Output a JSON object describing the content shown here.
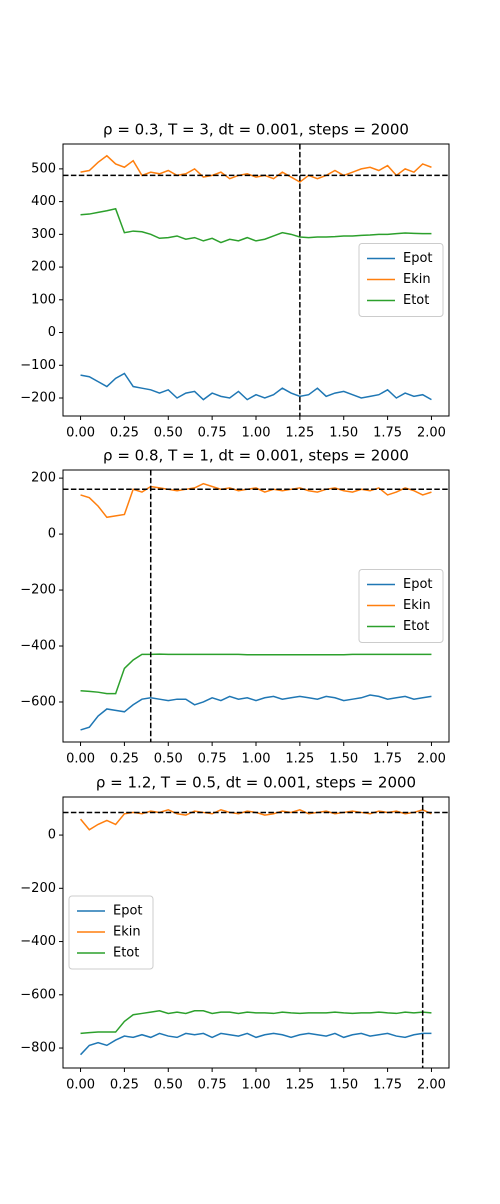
{
  "chart_data": [
    {
      "type": "line",
      "title": "ρ = 0.3, T = 3, dt = 0.001, steps = 2000",
      "x": [
        0,
        0.05,
        0.1,
        0.15,
        0.2,
        0.25,
        0.3,
        0.35,
        0.4,
        0.45,
        0.5,
        0.55,
        0.6,
        0.65,
        0.7,
        0.75,
        0.8,
        0.85,
        0.9,
        0.95,
        1,
        1.05,
        1.1,
        1.15,
        1.2,
        1.25,
        1.3,
        1.35,
        1.4,
        1.45,
        1.5,
        1.55,
        1.6,
        1.65,
        1.7,
        1.75,
        1.8,
        1.85,
        1.9,
        1.95,
        2
      ],
      "series": [
        {
          "name": "Epot",
          "color": "#1f77b4",
          "values": [
            -130,
            -135,
            -150,
            -165,
            -140,
            -125,
            -165,
            -170,
            -175,
            -185,
            -175,
            -200,
            -185,
            -180,
            -205,
            -185,
            -195,
            -200,
            -180,
            -205,
            -190,
            -200,
            -190,
            -170,
            -185,
            -195,
            -190,
            -170,
            -195,
            -185,
            -180,
            -190,
            -200,
            -195,
            -190,
            -175,
            -200,
            -185,
            -195,
            -190,
            -205
          ]
        },
        {
          "name": "Ekin",
          "color": "#ff7f0e",
          "values": [
            490,
            495,
            520,
            540,
            515,
            505,
            525,
            480,
            490,
            485,
            495,
            480,
            485,
            500,
            475,
            480,
            490,
            470,
            480,
            485,
            475,
            480,
            470,
            490,
            475,
            460,
            480,
            470,
            480,
            495,
            480,
            490,
            500,
            505,
            495,
            510,
            480,
            500,
            490,
            515,
            505
          ]
        },
        {
          "name": "Etot",
          "color": "#2ca02c",
          "values": [
            360,
            362,
            367,
            372,
            378,
            305,
            310,
            308,
            300,
            288,
            290,
            295,
            285,
            290,
            280,
            288,
            275,
            285,
            280,
            290,
            280,
            285,
            295,
            305,
            300,
            292,
            290,
            292,
            292,
            293,
            295,
            295,
            297,
            298,
            300,
            300,
            302,
            304,
            303,
            302,
            302
          ]
        }
      ],
      "reference_lines": {
        "y": 480,
        "x": 1.25,
        "color": "#000000"
      },
      "xlim": [
        -0.1,
        2.1
      ],
      "ylim": [
        -255,
        576
      ],
      "xticks": [
        {
          "value": 0,
          "label": "0.00"
        },
        {
          "value": 0.25,
          "label": "0.25"
        },
        {
          "value": 0.5,
          "label": "0.50"
        },
        {
          "value": 0.75,
          "label": "0.75"
        },
        {
          "value": 1,
          "label": "1.00"
        },
        {
          "value": 1.25,
          "label": "1.25"
        },
        {
          "value": 1.5,
          "label": "1.50"
        },
        {
          "value": 1.75,
          "label": "1.75"
        },
        {
          "value": 2,
          "label": "2.00"
        }
      ],
      "yticks": [
        {
          "value": -200,
          "label": "−200"
        },
        {
          "value": -100,
          "label": "−100"
        },
        0,
        100,
        200,
        300,
        400,
        500
      ],
      "legend": "center right"
    },
    {
      "type": "line",
      "title": "ρ = 0.8, T = 1, dt = 0.001, steps = 2000",
      "x": [
        0,
        0.05,
        0.1,
        0.15,
        0.2,
        0.25,
        0.3,
        0.35,
        0.4,
        0.45,
        0.5,
        0.55,
        0.6,
        0.65,
        0.7,
        0.75,
        0.8,
        0.85,
        0.9,
        0.95,
        1,
        1.05,
        1.1,
        1.15,
        1.2,
        1.25,
        1.3,
        1.35,
        1.4,
        1.45,
        1.5,
        1.55,
        1.6,
        1.65,
        1.7,
        1.75,
        1.8,
        1.85,
        1.9,
        1.95,
        2
      ],
      "series": [
        {
          "name": "Epot",
          "color": "#1f77b4",
          "values": [
            -700,
            -690,
            -650,
            -625,
            -630,
            -635,
            -610,
            -590,
            -585,
            -590,
            -595,
            -590,
            -590,
            -610,
            -600,
            -585,
            -595,
            -580,
            -590,
            -585,
            -595,
            -585,
            -580,
            -590,
            -585,
            -580,
            -585,
            -590,
            -580,
            -585,
            -595,
            -590,
            -585,
            -575,
            -580,
            -590,
            -585,
            -580,
            -590,
            -585,
            -580
          ]
        },
        {
          "name": "Ekin",
          "color": "#ff7f0e",
          "values": [
            140,
            130,
            100,
            60,
            65,
            70,
            160,
            150,
            170,
            165,
            160,
            155,
            160,
            165,
            180,
            170,
            160,
            165,
            155,
            160,
            165,
            150,
            160,
            155,
            160,
            165,
            155,
            150,
            160,
            165,
            155,
            150,
            160,
            155,
            165,
            140,
            150,
            165,
            155,
            140,
            150
          ]
        },
        {
          "name": "Etot",
          "color": "#2ca02c",
          "values": [
            -560,
            -562,
            -565,
            -570,
            -570,
            -480,
            -450,
            -430,
            -430,
            -429,
            -430,
            -430,
            -430,
            -430,
            -430,
            -430,
            -430,
            -430,
            -430,
            -431,
            -431,
            -431,
            -431,
            -431,
            -431,
            -431,
            -431,
            -431,
            -431,
            -431,
            -431,
            -430,
            -430,
            -430,
            -430,
            -430,
            -430,
            -430,
            -430,
            -430,
            -430
          ]
        }
      ],
      "reference_lines": {
        "y": 160,
        "x": 0.4,
        "color": "#000000"
      },
      "xlim": [
        -0.1,
        2.1
      ],
      "ylim": [
        -743,
        229
      ],
      "xticks": [
        {
          "value": 0,
          "label": "0.00"
        },
        {
          "value": 0.25,
          "label": "0.25"
        },
        {
          "value": 0.5,
          "label": "0.50"
        },
        {
          "value": 0.75,
          "label": "0.75"
        },
        {
          "value": 1,
          "label": "1.00"
        },
        {
          "value": 1.25,
          "label": "1.25"
        },
        {
          "value": 1.5,
          "label": "1.50"
        },
        {
          "value": 1.75,
          "label": "1.75"
        },
        {
          "value": 2,
          "label": "2.00"
        }
      ],
      "yticks": [
        {
          "value": -600,
          "label": "−600"
        },
        {
          "value": -400,
          "label": "−400"
        },
        {
          "value": -200,
          "label": "−200"
        },
        0,
        200
      ],
      "legend": "center right"
    },
    {
      "type": "line",
      "title": "ρ = 1.2, T = 0.5, dt = 0.001, steps = 2000",
      "x": [
        0,
        0.05,
        0.1,
        0.15,
        0.2,
        0.25,
        0.3,
        0.35,
        0.4,
        0.45,
        0.5,
        0.55,
        0.6,
        0.65,
        0.7,
        0.75,
        0.8,
        0.85,
        0.9,
        0.95,
        1,
        1.05,
        1.1,
        1.15,
        1.2,
        1.25,
        1.3,
        1.35,
        1.4,
        1.45,
        1.5,
        1.55,
        1.6,
        1.65,
        1.7,
        1.75,
        1.8,
        1.85,
        1.9,
        1.95,
        2
      ],
      "series": [
        {
          "name": "Epot",
          "color": "#1f77b4",
          "values": [
            -825,
            -790,
            -780,
            -790,
            -770,
            -755,
            -760,
            -750,
            -760,
            -745,
            -755,
            -760,
            -745,
            -750,
            -745,
            -760,
            -745,
            -750,
            -755,
            -745,
            -760,
            -750,
            -745,
            -750,
            -760,
            -750,
            -745,
            -750,
            -755,
            -745,
            -760,
            -750,
            -745,
            -755,
            -750,
            -745,
            -755,
            -760,
            -750,
            -745,
            -745
          ]
        },
        {
          "name": "Ekin",
          "color": "#ff7f0e",
          "values": [
            60,
            20,
            40,
            55,
            40,
            80,
            85,
            80,
            90,
            85,
            95,
            80,
            75,
            90,
            85,
            80,
            95,
            85,
            80,
            90,
            85,
            75,
            80,
            90,
            85,
            95,
            80,
            85,
            90,
            80,
            85,
            90,
            85,
            80,
            90,
            85,
            90,
            80,
            85,
            95,
            80
          ]
        },
        {
          "name": "Etot",
          "color": "#2ca02c",
          "values": [
            -745,
            -742,
            -740,
            -740,
            -740,
            -700,
            -675,
            -670,
            -665,
            -660,
            -670,
            -665,
            -670,
            -660,
            -660,
            -670,
            -665,
            -665,
            -670,
            -665,
            -668,
            -668,
            -670,
            -665,
            -668,
            -670,
            -668,
            -668,
            -668,
            -665,
            -668,
            -670,
            -668,
            -668,
            -665,
            -668,
            -670,
            -665,
            -668,
            -665,
            -668
          ]
        }
      ],
      "reference_lines": {
        "y": 85,
        "x": 1.95,
        "color": "#000000"
      },
      "xlim": [
        -0.1,
        2.1
      ],
      "ylim": [
        -875,
        143
      ],
      "xticks": [
        {
          "value": 0,
          "label": "0.00"
        },
        {
          "value": 0.25,
          "label": "0.25"
        },
        {
          "value": 0.5,
          "label": "0.50"
        },
        {
          "value": 0.75,
          "label": "0.75"
        },
        {
          "value": 1,
          "label": "1.00"
        },
        {
          "value": 1.25,
          "label": "1.25"
        },
        {
          "value": 1.5,
          "label": "1.50"
        },
        {
          "value": 1.75,
          "label": "1.75"
        },
        {
          "value": 2,
          "label": "2.00"
        }
      ],
      "yticks": [
        {
          "value": -800,
          "label": "−800"
        },
        {
          "value": -600,
          "label": "−600"
        },
        {
          "value": -400,
          "label": "−400"
        },
        {
          "value": -200,
          "label": "−200"
        },
        0
      ],
      "legend": "center left"
    }
  ]
}
